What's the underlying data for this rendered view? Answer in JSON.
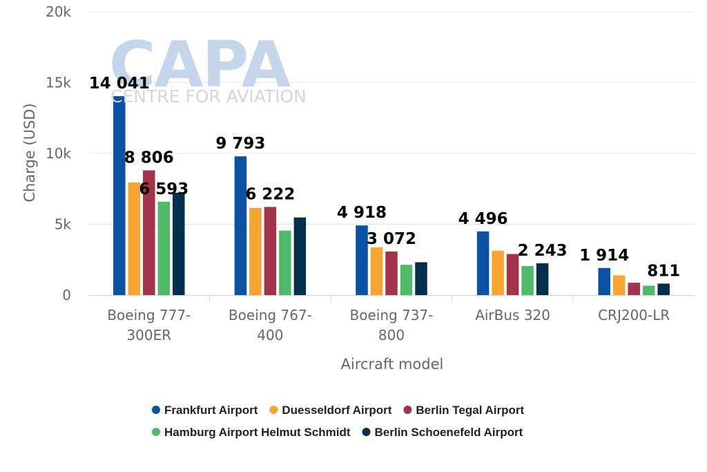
{
  "watermark": {
    "brand": "CAPA",
    "tagline": "CENTRE FOR AVIATION"
  },
  "chart_data": {
    "type": "bar",
    "xlabel": "Aircraft model",
    "ylabel": "Charge (USD)",
    "ylim": [
      0,
      20000
    ],
    "yticks": [
      "0",
      "5k",
      "10k",
      "15k",
      "20k"
    ],
    "grid": true,
    "legend_position": "bottom",
    "categories": [
      [
        "Boeing 777-",
        "300ER"
      ],
      [
        "Boeing 767-",
        "400"
      ],
      [
        "Boeing 737-",
        "800"
      ],
      [
        "AirBus 320"
      ],
      [
        "CRJ200-LR"
      ]
    ],
    "series": [
      {
        "name": "Frankfurt Airport",
        "color": "#0a52a6",
        "values": [
          14041,
          9793,
          4918,
          4496,
          1914
        ]
      },
      {
        "name": "Duesseldorf Airport",
        "color": "#f8a431",
        "values": [
          7950,
          6150,
          3370,
          3130,
          1390
        ]
      },
      {
        "name": "Berlin Tegal Airport",
        "color": "#a3334a",
        "values": [
          8806,
          6222,
          3072,
          2900,
          870
        ]
      },
      {
        "name": "Hamburg Airport Helmut Schmidt",
        "color": "#4fba6a",
        "values": [
          6593,
          4550,
          2140,
          2050,
          660
        ]
      },
      {
        "name": "Berlin Schoenefeld Airport",
        "color": "#04304e",
        "values": [
          7230,
          5480,
          2320,
          2243,
          811
        ]
      }
    ],
    "data_labels": [
      {
        "text": "14 041",
        "category": 0,
        "series": 0
      },
      {
        "text": "8 806",
        "category": 0,
        "series": 2
      },
      {
        "text": "6 593",
        "category": 0,
        "series": 3
      },
      {
        "text": "9 793",
        "category": 1,
        "series": 0
      },
      {
        "text": "6 222",
        "category": 1,
        "series": 2
      },
      {
        "text": "4 918",
        "category": 2,
        "series": 0
      },
      {
        "text": "3 072",
        "category": 2,
        "series": 2
      },
      {
        "text": "4 496",
        "category": 3,
        "series": 0
      },
      {
        "text": "2 243",
        "category": 3,
        "series": 4
      },
      {
        "text": "1 914",
        "category": 4,
        "series": 0
      },
      {
        "text": "811",
        "category": 4,
        "series": 4
      }
    ]
  }
}
